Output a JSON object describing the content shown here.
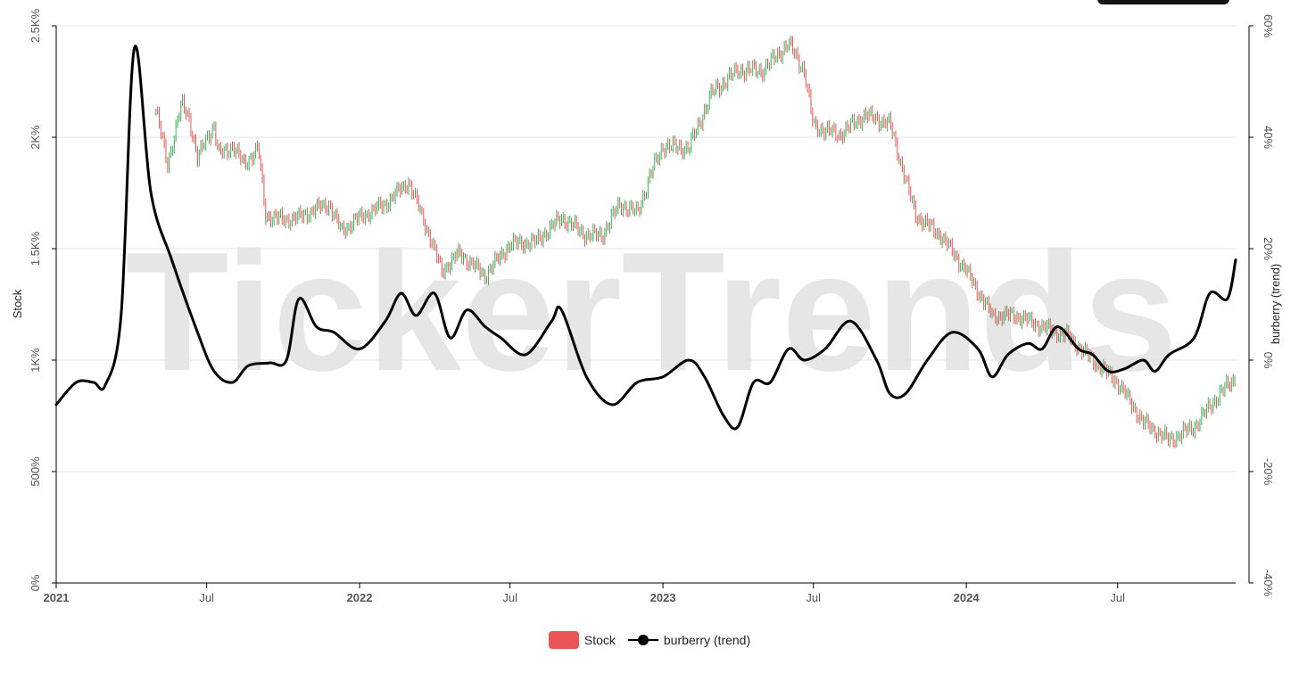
{
  "watermark": "TickerTrends",
  "legend": {
    "stock_label": "Stock",
    "trend_label": "burberry  (trend)",
    "stock_color": "#ea5455",
    "trend_color": "#000000"
  },
  "chart_data": {
    "type": "line",
    "x_range": [
      "2021-01-01",
      "2024-11-20"
    ],
    "x_ticks": [
      {
        "date": "2021-01-01",
        "label": "2021",
        "bold": true
      },
      {
        "date": "2021-07-01",
        "label": "Jul",
        "bold": false
      },
      {
        "date": "2022-01-01",
        "label": "2022",
        "bold": true
      },
      {
        "date": "2022-07-01",
        "label": "Jul",
        "bold": false
      },
      {
        "date": "2023-01-01",
        "label": "2023",
        "bold": true
      },
      {
        "date": "2023-07-01",
        "label": "Jul",
        "bold": false
      },
      {
        "date": "2024-01-01",
        "label": "2024",
        "bold": true
      },
      {
        "date": "2024-07-01",
        "label": "Jul",
        "bold": false
      }
    ],
    "y_left": {
      "label": "Stock",
      "min": 0,
      "max": 2500,
      "ticks": [
        {
          "value": 0,
          "label": "0%"
        },
        {
          "value": 500,
          "label": "500%"
        },
        {
          "value": 1000,
          "label": "1K%"
        },
        {
          "value": 1500,
          "label": "1.5K%"
        },
        {
          "value": 2000,
          "label": "2K%"
        },
        {
          "value": 2500,
          "label": "2.5K%"
        }
      ]
    },
    "y_right": {
      "label": "burberry  (trend)",
      "min": -40,
      "max": 60,
      "ticks": [
        {
          "value": -40,
          "label": "-40%"
        },
        {
          "value": -20,
          "label": "-20%"
        },
        {
          "value": 0,
          "label": "0%"
        },
        {
          "value": 20,
          "label": "20%"
        },
        {
          "value": 40,
          "label": "40%"
        },
        {
          "value": 60,
          "label": "60%"
        }
      ]
    },
    "grid": true,
    "legend_position": "bottom",
    "series": [
      {
        "name": "Stock",
        "type": "candlestick",
        "axis": "left",
        "up_color": "#3cae5a",
        "down_color": "#ea5455",
        "start": "2021-05-01",
        "points": [
          [
            "2021-05-01",
            2120
          ],
          [
            "2021-05-15",
            1880
          ],
          [
            "2021-06-01",
            2150
          ],
          [
            "2021-06-10",
            2090
          ],
          [
            "2021-06-20",
            1900
          ],
          [
            "2021-07-01",
            2000
          ],
          [
            "2021-07-10",
            2050
          ],
          [
            "2021-07-15",
            1920
          ],
          [
            "2021-08-01",
            1960
          ],
          [
            "2021-08-15",
            1880
          ],
          [
            "2021-09-01",
            1950
          ],
          [
            "2021-09-10",
            1650
          ],
          [
            "2021-10-01",
            1630
          ],
          [
            "2021-10-20",
            1640
          ],
          [
            "2021-11-10",
            1680
          ],
          [
            "2021-11-25",
            1700
          ],
          [
            "2021-12-10",
            1580
          ],
          [
            "2022-01-01",
            1640
          ],
          [
            "2022-02-01",
            1700
          ],
          [
            "2022-03-01",
            1800
          ],
          [
            "2022-03-20",
            1620
          ],
          [
            "2022-04-10",
            1400
          ],
          [
            "2022-05-01",
            1480
          ],
          [
            "2022-06-01",
            1380
          ],
          [
            "2022-07-01",
            1520
          ],
          [
            "2022-08-01",
            1530
          ],
          [
            "2022-09-01",
            1640
          ],
          [
            "2022-10-01",
            1560
          ],
          [
            "2022-10-20",
            1560
          ],
          [
            "2022-11-10",
            1700
          ],
          [
            "2022-12-01",
            1660
          ],
          [
            "2022-12-20",
            1860
          ],
          [
            "2023-01-01",
            1960
          ],
          [
            "2023-02-01",
            1950
          ],
          [
            "2023-03-01",
            2200
          ],
          [
            "2023-04-01",
            2300
          ],
          [
            "2023-05-01",
            2300
          ],
          [
            "2023-06-01",
            2420
          ],
          [
            "2023-06-20",
            2300
          ],
          [
            "2023-07-01",
            2050
          ],
          [
            "2023-08-01",
            2010
          ],
          [
            "2023-09-01",
            2100
          ],
          [
            "2023-10-01",
            2060
          ],
          [
            "2023-11-01",
            1650
          ],
          [
            "2023-12-01",
            1560
          ],
          [
            "2024-01-01",
            1400
          ],
          [
            "2024-02-01",
            1200
          ],
          [
            "2024-03-01",
            1200
          ],
          [
            "2024-04-01",
            1150
          ],
          [
            "2024-05-01",
            1110
          ],
          [
            "2024-06-01",
            1000
          ],
          [
            "2024-07-01",
            900
          ],
          [
            "2024-08-01",
            720
          ],
          [
            "2024-09-01",
            640
          ],
          [
            "2024-10-01",
            700
          ],
          [
            "2024-11-01",
            850
          ],
          [
            "2024-11-20",
            920
          ]
        ]
      },
      {
        "name": "burberry  (trend)",
        "type": "line",
        "axis": "right",
        "color": "#000000",
        "points": [
          [
            "2021-01-01",
            -8
          ],
          [
            "2021-01-25",
            -4
          ],
          [
            "2021-02-15",
            -4
          ],
          [
            "2021-03-01",
            -4.5
          ],
          [
            "2021-03-20",
            8
          ],
          [
            "2021-04-05",
            56
          ],
          [
            "2021-04-25",
            30
          ],
          [
            "2021-05-20",
            18
          ],
          [
            "2021-06-20",
            5
          ],
          [
            "2021-07-10",
            -2
          ],
          [
            "2021-08-01",
            -4
          ],
          [
            "2021-08-20",
            -1
          ],
          [
            "2021-09-15",
            -0.5
          ],
          [
            "2021-10-05",
            0
          ],
          [
            "2021-10-20",
            11
          ],
          [
            "2021-11-10",
            6
          ],
          [
            "2021-12-01",
            5
          ],
          [
            "2022-01-01",
            2
          ],
          [
            "2022-02-01",
            7
          ],
          [
            "2022-02-20",
            12
          ],
          [
            "2022-03-10",
            8
          ],
          [
            "2022-04-01",
            12
          ],
          [
            "2022-04-20",
            4
          ],
          [
            "2022-05-10",
            9
          ],
          [
            "2022-06-01",
            6
          ],
          [
            "2022-06-20",
            4
          ],
          [
            "2022-07-20",
            1
          ],
          [
            "2022-08-20",
            7
          ],
          [
            "2022-09-01",
            9
          ],
          [
            "2022-10-01",
            -3
          ],
          [
            "2022-11-01",
            -8
          ],
          [
            "2022-12-01",
            -4
          ],
          [
            "2023-01-01",
            -3
          ],
          [
            "2023-02-01",
            0
          ],
          [
            "2023-02-20",
            -3
          ],
          [
            "2023-03-15",
            -10
          ],
          [
            "2023-04-01",
            -12
          ],
          [
            "2023-04-20",
            -4
          ],
          [
            "2023-05-10",
            -4
          ],
          [
            "2023-06-01",
            2
          ],
          [
            "2023-06-20",
            0
          ],
          [
            "2023-07-15",
            2
          ],
          [
            "2023-08-15",
            7
          ],
          [
            "2023-09-15",
            0
          ],
          [
            "2023-10-01",
            -6
          ],
          [
            "2023-10-20",
            -6
          ],
          [
            "2023-11-15",
            0
          ],
          [
            "2023-12-15",
            5
          ],
          [
            "2024-01-15",
            2
          ],
          [
            "2024-02-01",
            -3
          ],
          [
            "2024-02-20",
            1
          ],
          [
            "2024-03-15",
            3
          ],
          [
            "2024-04-01",
            2
          ],
          [
            "2024-04-20",
            6
          ],
          [
            "2024-05-15",
            2
          ],
          [
            "2024-06-01",
            1
          ],
          [
            "2024-06-20",
            -2
          ],
          [
            "2024-07-10",
            -1.5
          ],
          [
            "2024-08-01",
            0
          ],
          [
            "2024-08-15",
            -2
          ],
          [
            "2024-09-01",
            1
          ],
          [
            "2024-10-01",
            4
          ],
          [
            "2024-10-20",
            12
          ],
          [
            "2024-11-10",
            11
          ],
          [
            "2024-11-20",
            18
          ]
        ]
      }
    ]
  }
}
